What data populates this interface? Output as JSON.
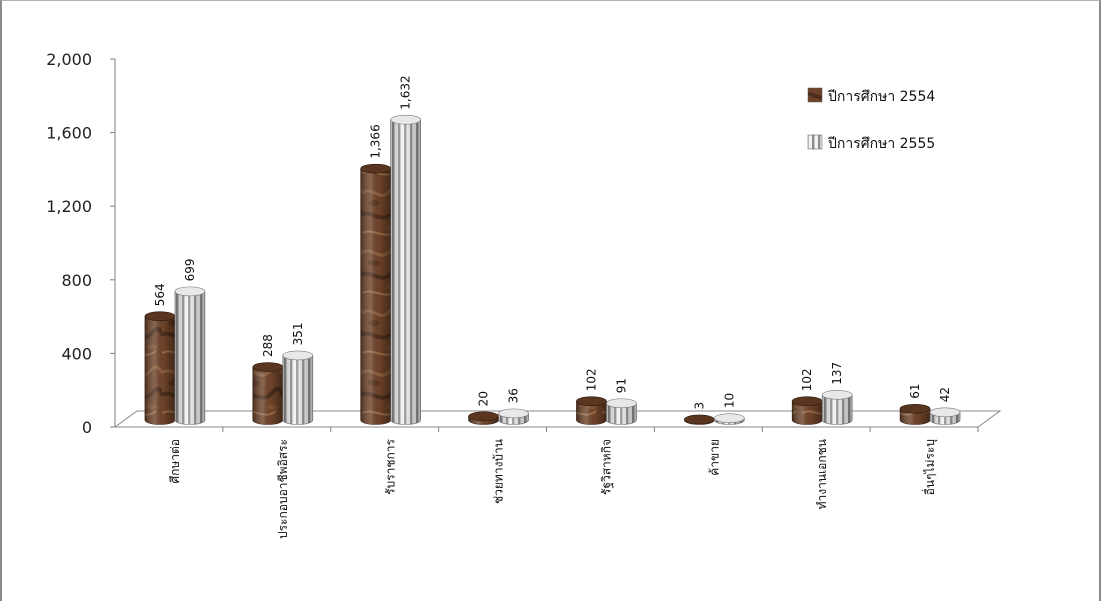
{
  "chart_data": {
    "type": "bar",
    "title": "",
    "xlabel": "",
    "ylabel": "",
    "ylim": [
      0,
      2000
    ],
    "yticks": [
      "2,000",
      "1,600",
      "1,200",
      "800",
      "400",
      "0"
    ],
    "ytick_values": [
      2000,
      1600,
      1200,
      800,
      400,
      0
    ],
    "categories": [
      "ศึกษาต่อ",
      "ประกอบอาชีพอิสระ",
      "รับราชการ",
      "ช่วยทางบ้าน",
      "รัฐวิสาหกิจ",
      "ค้าขาย",
      "ทำงานเอกชน",
      "อื่นๆไม่ระบุ"
    ],
    "series": [
      {
        "name": "ปีการศึกษา 2554",
        "values": [
          564,
          288,
          1366,
          20,
          102,
          3,
          102,
          61
        ],
        "labels": [
          "564",
          "288",
          "1,366",
          "20",
          "102",
          "3",
          "102",
          "61"
        ],
        "color": "#6b4128",
        "pattern": "marble"
      },
      {
        "name": "ปีการศึกษา 2555",
        "values": [
          699,
          351,
          1632,
          36,
          91,
          10,
          137,
          42
        ],
        "labels": [
          "699",
          "351",
          "1,632",
          "36",
          "91",
          "10",
          "137",
          "42"
        ],
        "color": "#cfcfcf",
        "pattern": "vertical-stripes"
      }
    ],
    "grid": false,
    "legend_position": "top-right",
    "style": "3d-cylinder"
  }
}
